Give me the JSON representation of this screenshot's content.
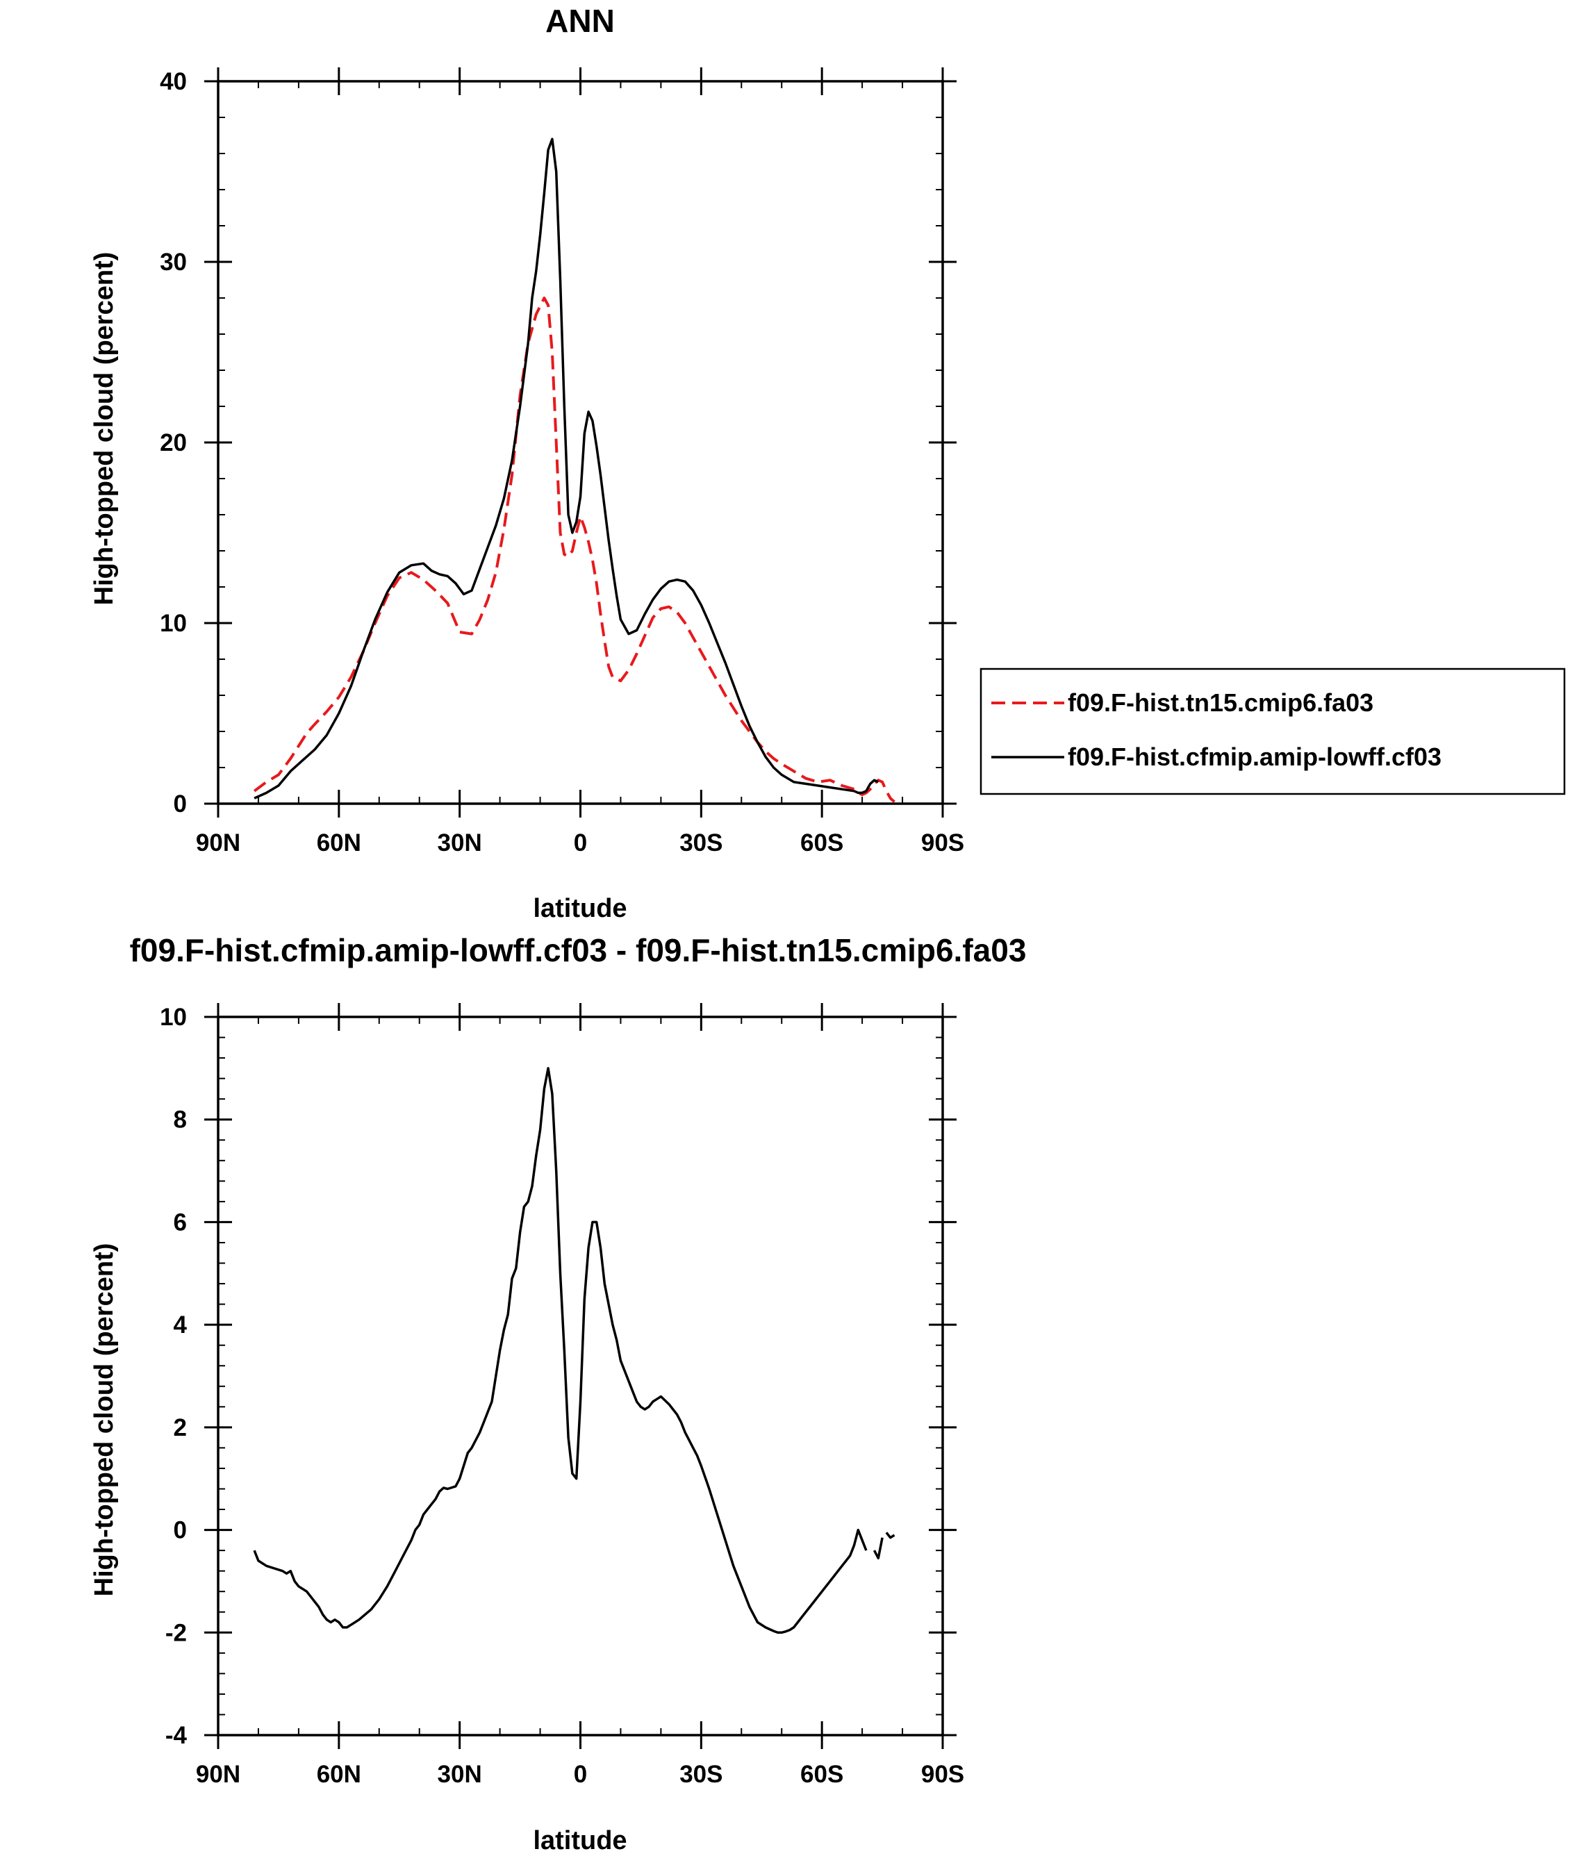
{
  "chart_data": [
    {
      "type": "line",
      "title": "ANN",
      "xlabel": "latitude",
      "ylabel": "High-topped cloud (percent)",
      "xlim": [
        90,
        -90
      ],
      "ylim": [
        0,
        40
      ],
      "x_ticks": [
        90,
        60,
        30,
        0,
        -30,
        -60,
        -90
      ],
      "x_tick_labels": [
        "90N",
        "60N",
        "30N",
        "0",
        "30S",
        "60S",
        "90S"
      ],
      "y_ticks": [
        0,
        10,
        20,
        30,
        40
      ],
      "y_tick_labels": [
        "0",
        "10",
        "20",
        "30",
        "40"
      ],
      "legend_position": "right",
      "series": [
        {
          "name": "f09.F-hist.tn15.cmip6.fa03",
          "color": "#e8191c",
          "style": "dashed",
          "x": [
            81,
            78,
            75,
            72,
            70,
            68,
            66,
            63,
            60,
            57,
            54,
            51,
            48,
            45,
            42,
            39,
            36,
            33,
            30,
            27,
            25,
            23,
            21,
            19,
            17,
            15,
            13,
            11,
            9,
            8,
            7,
            6,
            5,
            4,
            3,
            2,
            1,
            0,
            -1,
            -2,
            -3,
            -4,
            -5,
            -6,
            -7,
            -8,
            -10,
            -12,
            -14,
            -16,
            -18,
            -20,
            -22,
            -24,
            -26,
            -28,
            -30,
            -32,
            -34,
            -36,
            -38,
            -40,
            -42,
            -44,
            -46,
            -48,
            -50,
            -53,
            -56,
            -59,
            -62,
            -65,
            -68,
            -69,
            -70,
            -71,
            -72,
            -73,
            -74,
            -75,
            -76,
            -77,
            -78
          ],
          "y": [
            0.7,
            1.2,
            1.6,
            2.5,
            3.2,
            3.9,
            4.4,
            5.1,
            5.9,
            7,
            8.4,
            10,
            11.5,
            12.5,
            12.8,
            12.4,
            11.8,
            11.1,
            9.5,
            9.4,
            10.2,
            11.3,
            12.8,
            15.2,
            18.2,
            22.6,
            25.5,
            27.1,
            28,
            27.6,
            25,
            20,
            15,
            13.8,
            13.7,
            14,
            15,
            15.9,
            15.3,
            14.5,
            13.5,
            12.2,
            10.5,
            9,
            7.6,
            7,
            6.8,
            7.4,
            8.3,
            9.3,
            10.3,
            10.8,
            10.9,
            10.6,
            10,
            9.2,
            8.4,
            7.6,
            6.8,
            6,
            5.3,
            4.6,
            4,
            3.4,
            2.9,
            2.5,
            2.2,
            1.8,
            1.4,
            1.2,
            1.3,
            1,
            0.8,
            0.6,
            0.5,
            0.6,
            0.8,
            1.1,
            1.3,
            1.2,
            0.7,
            0.3,
            0.1
          ]
        },
        {
          "name": "f09.F-hist.cfmip.amip-lowff.cf03",
          "color": "#000000",
          "style": "solid",
          "x": [
            81,
            78,
            75,
            72,
            69,
            66,
            63,
            60,
            57,
            54,
            51,
            48,
            45,
            42,
            39,
            37,
            35,
            33,
            31,
            29,
            27,
            25,
            23,
            21,
            19,
            17,
            15,
            13,
            12,
            11,
            10,
            9,
            8,
            7,
            6,
            5,
            4,
            3,
            2,
            1,
            0,
            -1,
            -2,
            -3,
            -4,
            -5,
            -6,
            -7,
            -8,
            -9,
            -10,
            -12,
            -14,
            -16,
            -18,
            -20,
            -22,
            -24,
            -26,
            -28,
            -30,
            -32,
            -34,
            -36,
            -38,
            -40,
            -42,
            -44,
            -46,
            -48,
            -50,
            -53,
            -56,
            -59,
            -62,
            -65,
            -68,
            -69,
            -70,
            -71,
            -72,
            -73,
            -74
          ],
          "y": [
            0.3,
            0.6,
            1,
            1.8,
            2.4,
            3,
            3.8,
            5,
            6.5,
            8.4,
            10.2,
            11.7,
            12.8,
            13.2,
            13.3,
            12.9,
            12.7,
            12.6,
            12.2,
            11.6,
            11.8,
            13,
            14.2,
            15.4,
            16.9,
            19,
            22,
            25.5,
            28,
            29.5,
            31.5,
            33.8,
            36.2,
            36.8,
            35,
            29,
            22,
            16,
            15,
            15.6,
            17,
            20.5,
            21.7,
            21.2,
            19.8,
            18.2,
            16.4,
            14.6,
            13,
            11.5,
            10.2,
            9.4,
            9.6,
            10.5,
            11.3,
            11.9,
            12.3,
            12.4,
            12.3,
            11.8,
            11,
            10,
            8.9,
            7.8,
            6.6,
            5.4,
            4.3,
            3.4,
            2.6,
            2,
            1.6,
            1.2,
            1.1,
            1,
            0.9,
            0.8,
            0.7,
            0.6,
            0.6,
            0.7,
            1.1,
            1.3,
            1.2
          ]
        }
      ]
    },
    {
      "type": "line",
      "title": "f09.F-hist.cfmip.amip-lowff.cf03 - f09.F-hist.tn15.cmip6.fa03",
      "xlabel": "latitude",
      "ylabel": "High-topped cloud (percent)",
      "xlim": [
        90,
        -90
      ],
      "ylim": [
        -4,
        10
      ],
      "x_ticks": [
        90,
        60,
        30,
        0,
        -30,
        -60,
        -90
      ],
      "x_tick_labels": [
        "90N",
        "60N",
        "30N",
        "0",
        "30S",
        "60S",
        "90S"
      ],
      "y_ticks": [
        -4,
        -2,
        0,
        2,
        4,
        6,
        8,
        10
      ],
      "y_tick_labels": [
        "-4",
        "-2",
        "0",
        "2",
        "4",
        "6",
        "8",
        "10"
      ],
      "series": [
        {
          "name": "f09.F-hist.cfmip.amip-lowff.cf03 - f09.F-hist.tn15.cmip6.fa03",
          "color": "#000000",
          "style": "solid",
          "segments": [
            {
              "x": [
                81,
                80,
                79,
                78,
                76,
                74,
                73,
                72,
                71,
                70,
                68,
                67,
                66,
                65,
                64,
                63,
                62,
                61,
                60,
                59,
                58,
                57,
                55,
                52,
                50,
                48,
                46,
                44,
                42,
                41,
                40,
                39,
                38,
                37,
                36,
                35,
                34,
                33,
                31,
                30,
                28,
                27,
                25,
                24,
                22,
                21,
                20,
                19,
                18,
                17,
                16,
                15,
                14,
                13,
                12,
                11,
                10,
                9,
                8,
                7,
                6,
                5,
                4,
                3,
                2,
                1,
                0,
                -1,
                -2,
                -3,
                -4,
                -5,
                -6,
                -7,
                -8,
                -9,
                -10,
                -11,
                -12,
                -13,
                -14,
                -15,
                -16,
                -17,
                -18,
                -19,
                -20,
                -22,
                -23,
                -24,
                -25,
                -26,
                -27,
                -28,
                -29,
                -30,
                -32,
                -34,
                -36,
                -38,
                -40,
                -42,
                -44,
                -46,
                -48,
                -49,
                -50,
                -51,
                -52,
                -53,
                -54,
                -55,
                -56,
                -57,
                -58,
                -60,
                -62,
                -64,
                -66,
                -67,
                -68,
                -69,
                -70,
                -71
              ],
              "y": [
                -0.4,
                -0.6,
                -0.65,
                -0.7,
                -0.75,
                -0.8,
                -0.85,
                -0.8,
                -1,
                -1.1,
                -1.2,
                -1.3,
                -1.4,
                -1.5,
                -1.65,
                -1.75,
                -1.8,
                -1.75,
                -1.8,
                -1.9,
                -1.9,
                -1.85,
                -1.75,
                -1.55,
                -1.35,
                -1.1,
                -0.8,
                -0.5,
                -0.2,
                0,
                0.1,
                0.3,
                0.4,
                0.5,
                0.6,
                0.75,
                0.82,
                0.8,
                0.85,
                1,
                1.5,
                1.6,
                1.9,
                2.1,
                2.5,
                3,
                3.5,
                3.9,
                4.2,
                4.9,
                5.1,
                5.8,
                6.3,
                6.4,
                6.7,
                7.3,
                7.8,
                8.6,
                9,
                8.5,
                7,
                5,
                3.5,
                1.8,
                1.1,
                1,
                2.5,
                4.5,
                5.5,
                6,
                6,
                5.5,
                4.8,
                4.4,
                4,
                3.7,
                3.3,
                3.1,
                2.9,
                2.7,
                2.5,
                2.4,
                2.35,
                2.4,
                2.5,
                2.55,
                2.6,
                2.45,
                2.35,
                2.25,
                2.1,
                1.9,
                1.75,
                1.6,
                1.45,
                1.25,
                0.8,
                0.3,
                -0.2,
                -0.7,
                -1.1,
                -1.5,
                -1.8,
                -1.9,
                -1.97,
                -2,
                -2,
                -1.98,
                -1.95,
                -1.9,
                -1.8,
                -1.7,
                -1.6,
                -1.5,
                -1.4,
                -1.2,
                -1.0,
                -0.8,
                -0.6,
                -0.5,
                -0.3,
                0,
                -0.2,
                -0.4
              ]
            },
            {
              "x": [
                -73,
                -74,
                -75
              ],
              "y": [
                -0.4,
                -0.55,
                -0.15
              ]
            },
            {
              "x": [
                -76,
                -77,
                -78
              ],
              "y": [
                -0.05,
                -0.15,
                -0.1
              ]
            }
          ]
        }
      ]
    }
  ]
}
